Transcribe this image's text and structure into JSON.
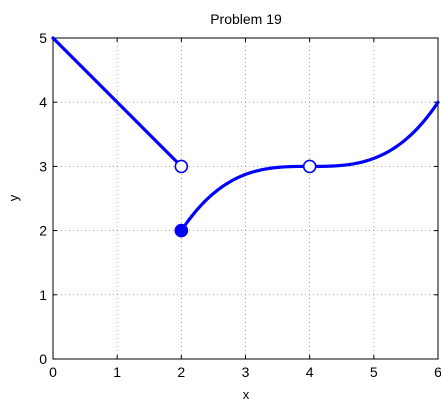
{
  "chart_data": {
    "type": "line",
    "title": "Problem 19",
    "xlabel": "x",
    "ylabel": "y",
    "xlim": [
      0,
      6
    ],
    "ylim": [
      0,
      5
    ],
    "xticks": [
      0,
      1,
      2,
      3,
      4,
      5,
      6
    ],
    "yticks": [
      0,
      1,
      2,
      3,
      4,
      5
    ],
    "grid": true,
    "line_color": "#0000ff",
    "series": [
      {
        "segment": "linear",
        "points": [
          [
            0,
            5
          ],
          [
            2,
            3
          ]
        ]
      },
      {
        "segment": "cubic",
        "formula": "y = 3 + ((x - 4) / 2)^3",
        "domain": [
          2,
          6
        ],
        "points": [
          [
            2,
            2
          ],
          [
            3,
            2.875
          ],
          [
            4,
            3
          ],
          [
            5,
            3.125
          ],
          [
            6,
            4
          ]
        ]
      }
    ],
    "markers": [
      {
        "x": 2,
        "y": 3,
        "style": "open"
      },
      {
        "x": 2,
        "y": 2,
        "style": "filled"
      },
      {
        "x": 4,
        "y": 3,
        "style": "open"
      }
    ]
  }
}
